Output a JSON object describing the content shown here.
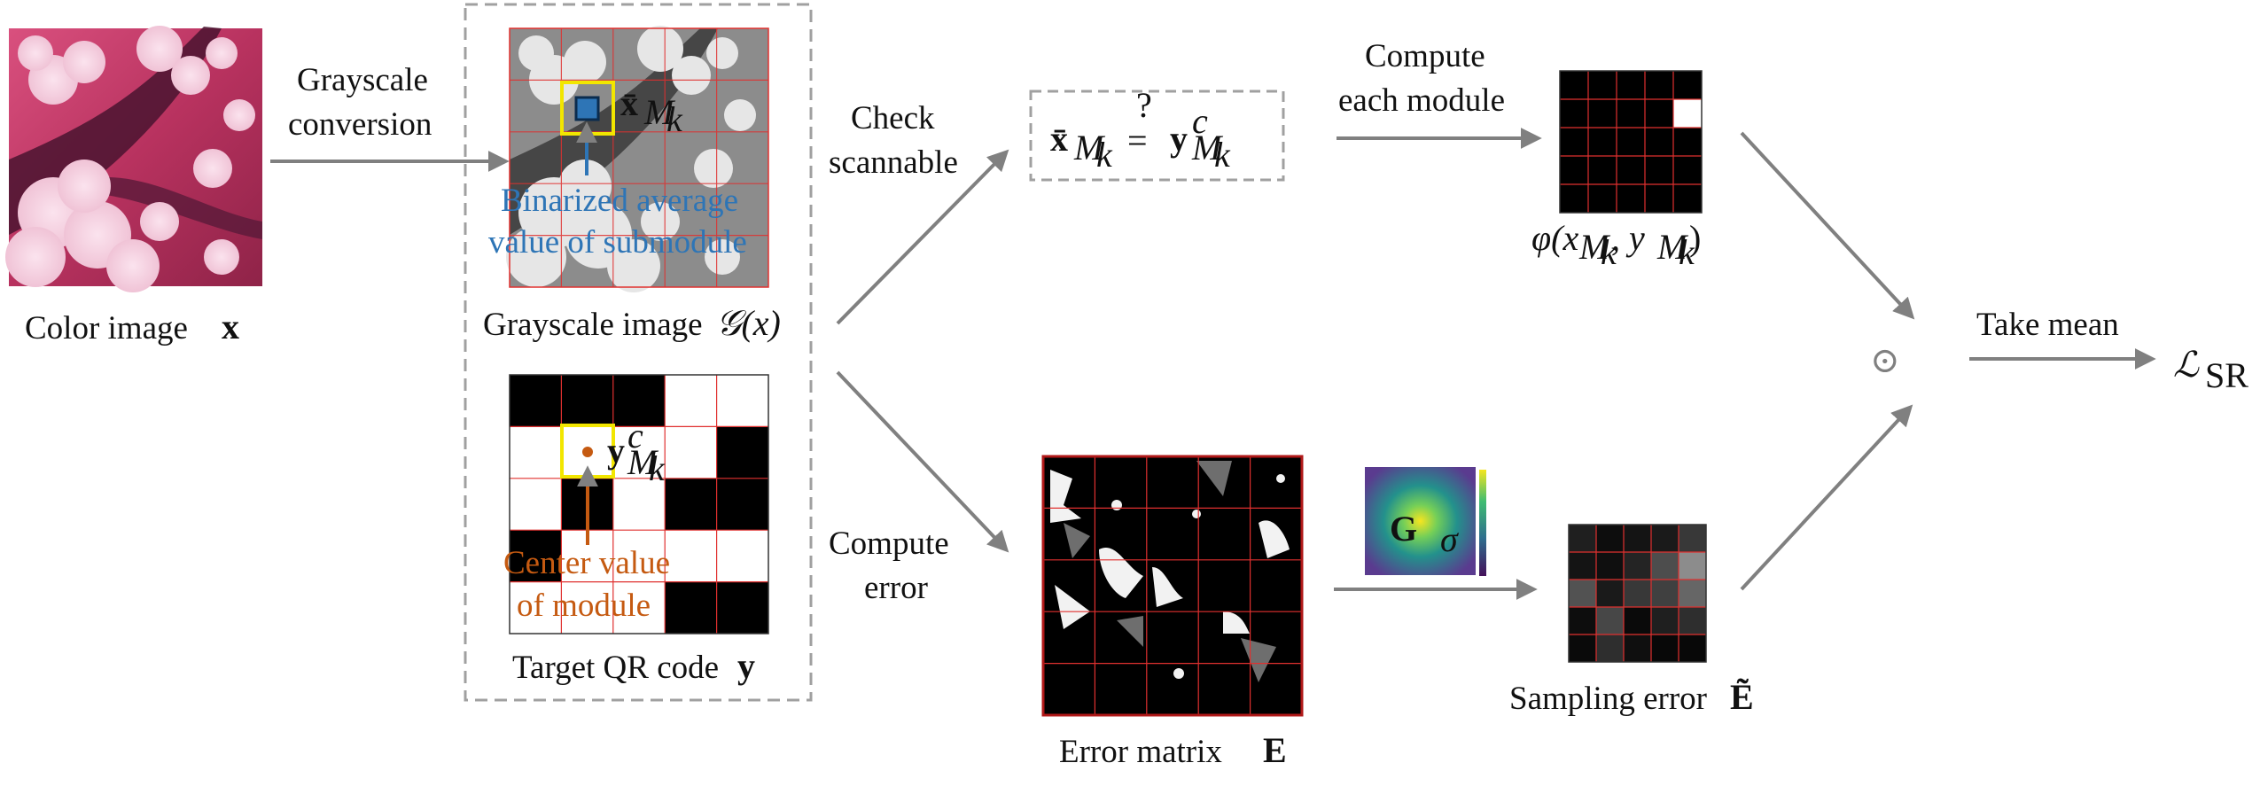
{
  "labels": {
    "color_image": "Color image",
    "grayscale_conversion_1": "Grayscale",
    "grayscale_conversion_2": "conversion",
    "binarized_1": "Binarized average",
    "binarized_2": "value of submodule",
    "grayscale_image": "Grayscale image",
    "center_value_1": "Center value",
    "center_value_2": "of module",
    "target_qr": "Target QR code",
    "check_1": "Check",
    "check_2": "scannable",
    "compute_each_1": "Compute",
    "compute_each_2": "each module",
    "compute_error_1": "Compute",
    "compute_error_2": "error",
    "error_matrix": "Error matrix",
    "sampling_error": "Sampling error",
    "take_mean": "Take mean"
  },
  "math": {
    "x": "x",
    "y": "y",
    "G_of_x": "𝒢(x)",
    "xbar": "x̄",
    "M_k": "M",
    "k": "k",
    "c": "c",
    "q": "?",
    "eq": "=",
    "phi": "φ(x",
    "phi_mid": ", y",
    "phi_end": ")",
    "E": "E",
    "E_tilde": "Ẽ",
    "G": "G",
    "sigma": "σ",
    "odot": "⊙",
    "L": "ℒ",
    "SR": "SR"
  },
  "colors": {
    "arrow": "#808080",
    "highlight": "#f2e600",
    "blue": "#2e75b6",
    "orange": "#c55a11",
    "grid": "#e0302f",
    "pink": "#c23a69"
  },
  "qr_grid": [
    [
      1,
      1,
      1,
      0,
      0
    ],
    [
      0,
      0,
      0,
      0,
      1
    ],
    [
      0,
      1,
      0,
      1,
      1
    ],
    [
      1,
      0,
      0,
      0,
      0
    ],
    [
      0,
      0,
      0,
      1,
      1
    ]
  ],
  "phi_grid": [
    [
      0,
      0,
      0,
      0,
      0
    ],
    [
      0,
      0,
      0,
      0,
      1
    ],
    [
      0,
      0,
      0,
      0,
      0
    ],
    [
      0,
      0,
      0,
      0,
      0
    ],
    [
      0,
      0,
      0,
      0,
      0
    ]
  ],
  "sampling_grid": [
    [
      0.12,
      0.05,
      0.08,
      0.1,
      0.22
    ],
    [
      0.08,
      0.06,
      0.14,
      0.3,
      0.55
    ],
    [
      0.32,
      0.1,
      0.22,
      0.25,
      0.4
    ],
    [
      0.05,
      0.28,
      0.04,
      0.12,
      0.18
    ],
    [
      0.04,
      0.18,
      0.06,
      0.03,
      0.03
    ]
  ]
}
